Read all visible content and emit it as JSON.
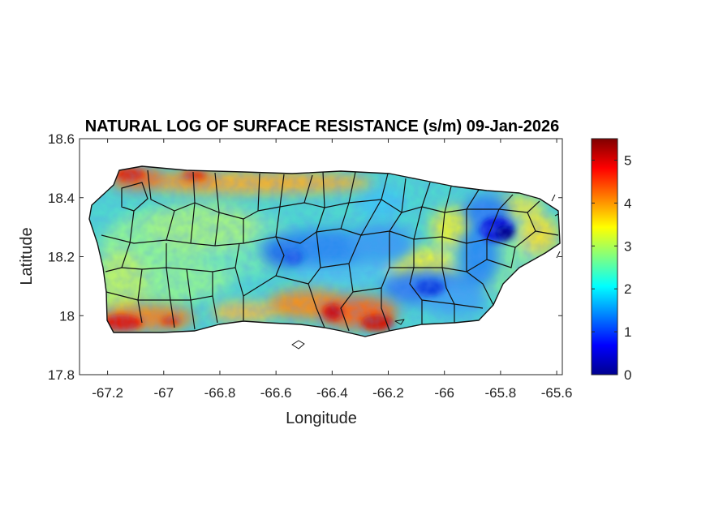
{
  "title": "NATURAL LOG OF SURFACE RESISTANCE (s/m) 09-Jan-2026",
  "map": {
    "xlabel": "Longitude",
    "ylabel": "Latitude",
    "xlim": [
      -67.3,
      -65.58
    ],
    "ylim": [
      17.8,
      18.6
    ],
    "xticks": [
      -67.2,
      -67,
      -66.8,
      -66.6,
      -66.4,
      -66.2,
      -66,
      -65.8,
      -65.6
    ],
    "yticks": [
      17.8,
      18,
      18.2,
      18.4,
      18.6
    ],
    "region": "Puerto Rico",
    "boundaries": "municipality borders (black)",
    "colormap": "jet",
    "notable_values": [
      {
        "area": "north coast",
        "value": 4.5
      },
      {
        "area": "southwest coast",
        "value": 5.0
      },
      {
        "area": "south coast",
        "value": 4.5
      },
      {
        "area": "east interior (El Yunque)",
        "value": 0.5
      },
      {
        "area": "central-east interior",
        "value": 1.2
      },
      {
        "area": "general interior",
        "value": 2.5
      }
    ]
  },
  "colorbar": {
    "min": 0,
    "max": 5.5,
    "ticks": [
      "0",
      "1",
      "2",
      "3",
      "4",
      "5"
    ],
    "tick_values": [
      0,
      1,
      2,
      3,
      4,
      5
    ],
    "colors": [
      "#00008f",
      "#0000ff",
      "#0080ff",
      "#00ffff",
      "#80ff80",
      "#ffff00",
      "#ff8000",
      "#ff0000",
      "#800000"
    ]
  }
}
